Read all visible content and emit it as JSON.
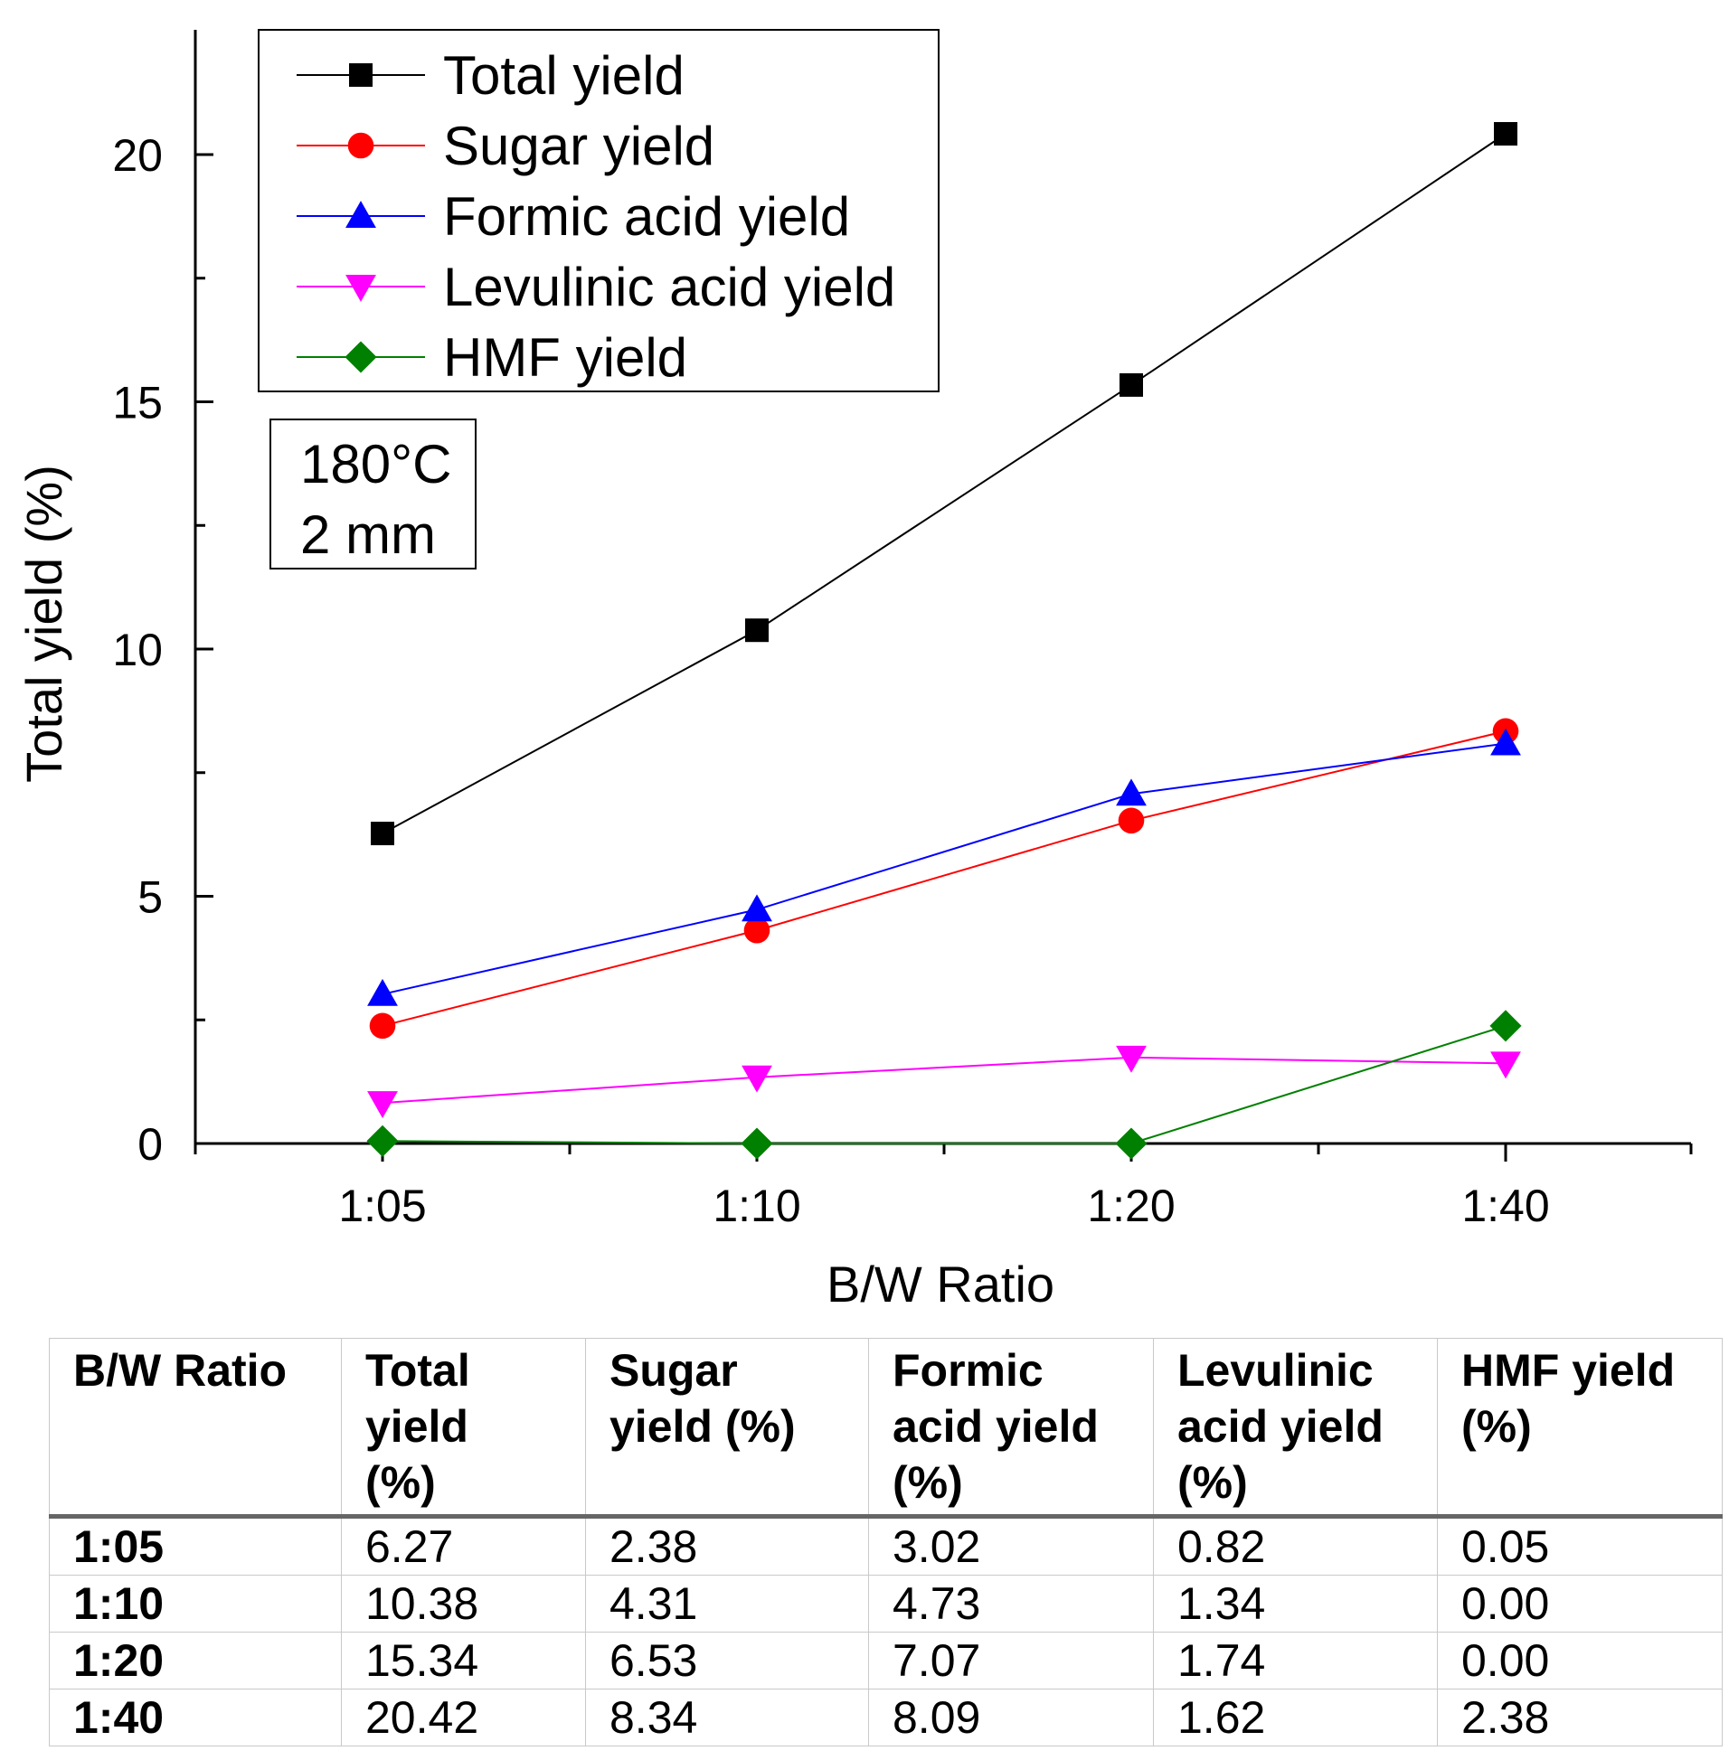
{
  "chart_data": {
    "type": "line",
    "categories": [
      "1:05",
      "1:10",
      "1:20",
      "1:40"
    ],
    "xlabel": "B/W Ratio",
    "ylabel": "Total yield (%)",
    "ylim": [
      0,
      22.5
    ],
    "yticks": [
      0,
      5,
      10,
      15,
      20
    ],
    "grid": false,
    "legend_position": "top-left",
    "annotation": [
      "180°C",
      "2 mm"
    ],
    "series": [
      {
        "name": "Total yield",
        "color": "#000000",
        "marker": "square",
        "values": [
          6.27,
          10.38,
          15.34,
          20.42
        ]
      },
      {
        "name": "Sugar yield",
        "color": "#ff0000",
        "marker": "circle",
        "values": [
          2.38,
          4.31,
          6.53,
          8.34
        ]
      },
      {
        "name": "Formic acid yield",
        "color": "#0000ff",
        "marker": "triangle-up",
        "values": [
          3.02,
          4.73,
          7.07,
          8.09
        ]
      },
      {
        "name": "Levulinic acid yield",
        "color": "#ff00ff",
        "marker": "triangle-down",
        "values": [
          0.82,
          1.34,
          1.74,
          1.62
        ]
      },
      {
        "name": "HMF yield",
        "color": "#008000",
        "marker": "diamond",
        "values": [
          0.05,
          0.0,
          0.0,
          2.38
        ]
      }
    ]
  },
  "table": {
    "headers": [
      [
        "B/W Ratio"
      ],
      [
        "Total",
        "yield",
        "(%)"
      ],
      [
        "Sugar",
        "yield (%)"
      ],
      [
        "Formic",
        "acid yield",
        "(%)"
      ],
      [
        "Levulinic",
        "acid yield",
        "(%)"
      ],
      [
        "HMF yield",
        "(%)"
      ]
    ],
    "rows": [
      [
        "1:05",
        "6.27",
        "2.38",
        "3.02",
        "0.82",
        "0.05"
      ],
      [
        "1:10",
        "10.38",
        "4.31",
        "4.73",
        "1.34",
        "0.00"
      ],
      [
        "1:20",
        "15.34",
        "6.53",
        "7.07",
        "1.74",
        "0.00"
      ],
      [
        "1:40",
        "20.42",
        "8.34",
        "8.09",
        "1.62",
        "2.38"
      ]
    ]
  }
}
